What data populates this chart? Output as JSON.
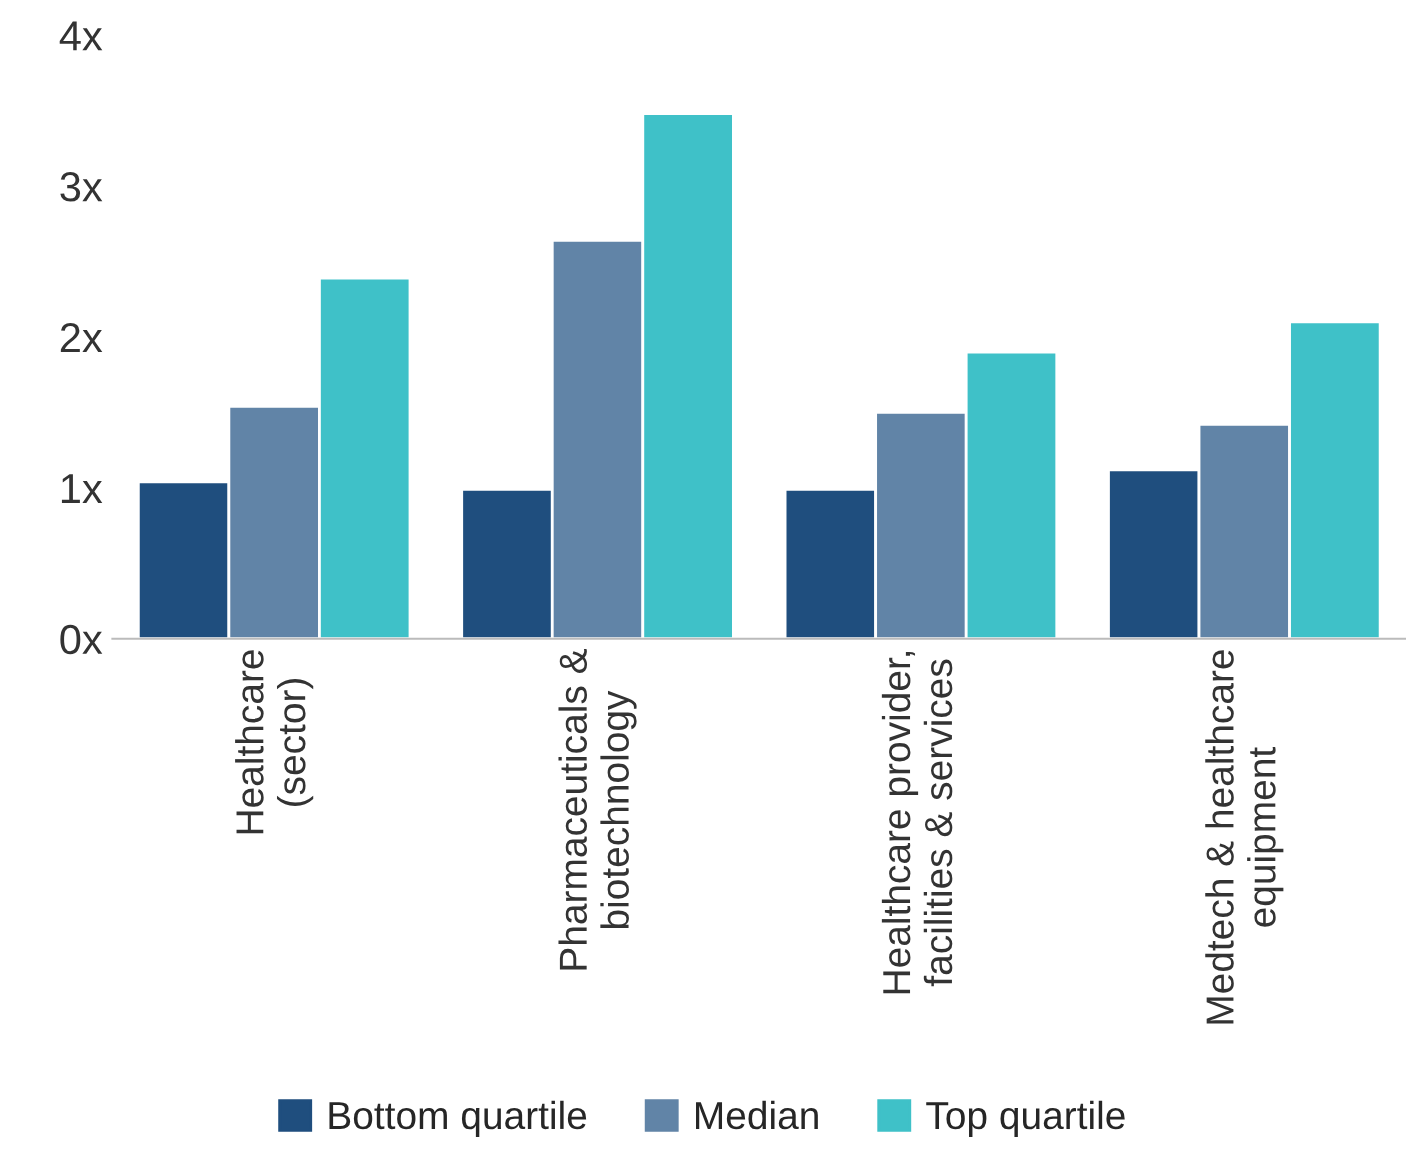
{
  "chart_data": {
    "type": "bar",
    "categories": [
      "Healthcare\n(sector)",
      "Pharmaceuticals &\nbiotechnology",
      "Healthcare provider,\nfacilities & services",
      "Medtech & healthcare\nequipment"
    ],
    "series": [
      {
        "name": "Bottom quartile",
        "color": "#1f4e7e",
        "values": [
          1.04,
          0.99,
          0.99,
          1.12
        ]
      },
      {
        "name": "Median",
        "color": "#6184a7",
        "values": [
          1.54,
          2.64,
          1.5,
          1.42
        ]
      },
      {
        "name": "Top quartile",
        "color": "#3fc1c8",
        "values": [
          2.39,
          3.48,
          1.9,
          2.1
        ]
      }
    ],
    "ylim": [
      0,
      4
    ],
    "yticks": [
      {
        "value": 0,
        "label": "0x"
      },
      {
        "value": 1,
        "label": "1x"
      },
      {
        "value": 2,
        "label": "2x"
      },
      {
        "value": 3,
        "label": "3x"
      },
      {
        "value": 4,
        "label": "4x"
      }
    ],
    "grid": false,
    "legend": "bottom"
  }
}
